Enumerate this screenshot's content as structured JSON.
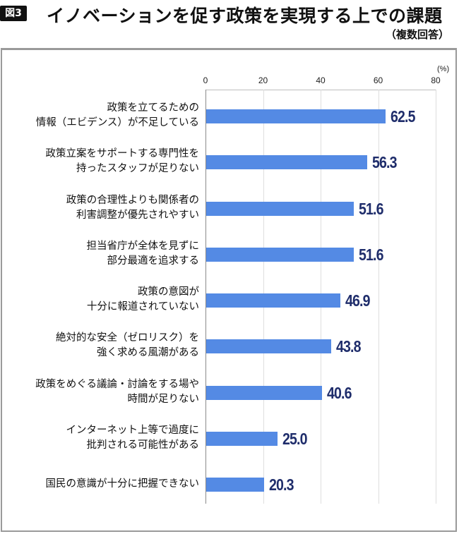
{
  "figure": {
    "badge": "図3",
    "title": "イノベーションを促す政策を実現する上での課題",
    "subtitle": "（複数回答）",
    "unit": "(%)"
  },
  "axis": {
    "ticks": [
      "0",
      "20",
      "40",
      "60",
      "80"
    ]
  },
  "colors": {
    "bar": "#548ae4",
    "value_label": "#1f2d6b",
    "frame": "#9a9a9a"
  },
  "rows": [
    {
      "line1": "政策を立てるための",
      "line2": "情報（エビデンス）が不足している",
      "value": "62.5"
    },
    {
      "line1": "政策立案をサポートする専門性を",
      "line2": "持ったスタッフが足りない",
      "value": "56.3"
    },
    {
      "line1": "政策の合理性よりも関係者の",
      "line2": "利害調整が優先されやすい",
      "value": "51.6"
    },
    {
      "line1": "担当省庁が全体を見ずに",
      "line2": "部分最適を追求する",
      "value": "51.6"
    },
    {
      "line1": "政策の意図が",
      "line2": "十分に報道されていない",
      "value": "46.9"
    },
    {
      "line1": "絶対的な安全（ゼロリスク）を",
      "line2": "強く求める風潮がある",
      "value": "43.8"
    },
    {
      "line1": "政策をめぐる議論・討論をする場や",
      "line2": "時間が足りない",
      "value": "40.6"
    },
    {
      "line1": "インターネット上等で過度に",
      "line2": "批判される可能性がある",
      "value": "25.0"
    },
    {
      "line1": "国民の意識が十分に把握できない",
      "line2": "",
      "value": "20.3"
    }
  ],
  "chart_data": {
    "type": "bar",
    "orientation": "horizontal",
    "title": "イノベーションを促す政策を実現する上での課題",
    "subtitle": "（複数回答）",
    "xlabel": "(%)",
    "ylabel": "",
    "xlim": [
      0,
      80
    ],
    "xticks": [
      0,
      20,
      40,
      60,
      80
    ],
    "grid": true,
    "categories": [
      "政策を立てるための情報（エビデンス）が不足している",
      "政策立案をサポートする専門性を持ったスタッフが足りない",
      "政策の合理性よりも関係者の利害調整が優先されやすい",
      "担当省庁が全体を見ずに部分最適を追求する",
      "政策の意図が十分に報道されていない",
      "絶対的な安全（ゼロリスク）を強く求める風潮がある",
      "政策をめぐる議論・討論をする場や時間が足りない",
      "インターネット上等で過度に批判される可能性がある",
      "国民の意識が十分に把握できない"
    ],
    "values": [
      62.5,
      56.3,
      51.6,
      51.6,
      46.9,
      43.8,
      40.6,
      25.0,
      20.3
    ]
  }
}
